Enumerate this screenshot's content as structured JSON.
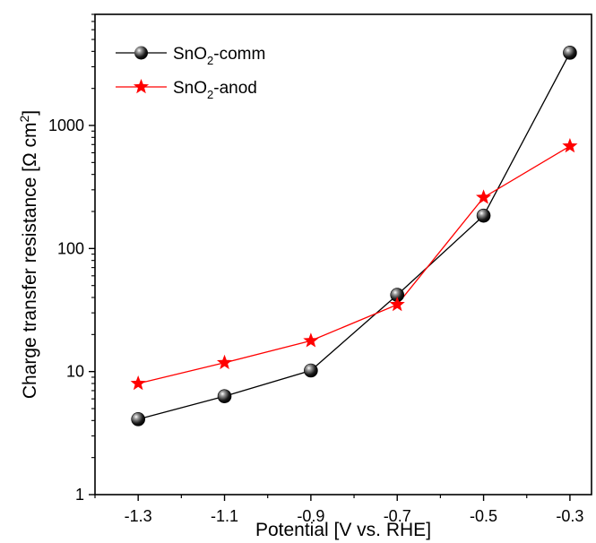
{
  "chart_data": {
    "type": "line",
    "xlabel": "Potential [V vs. RHE]",
    "ylabel": {
      "main": "Charge transfer resistance [Ω cm",
      "sup": "2",
      "close": "]"
    },
    "x": [
      -1.3,
      -1.1,
      -0.9,
      -0.7,
      -0.5,
      -0.3
    ],
    "x_tick_labels": [
      "-1.3",
      "-1.1",
      "-0.9",
      "-0.7",
      "-0.5",
      "-0.3"
    ],
    "xlim": [
      -1.4,
      -0.25
    ],
    "y_scale": "log",
    "ylim": [
      1,
      8000
    ],
    "y_tick_labels": [
      "1",
      "10",
      "100",
      "1000"
    ],
    "legend_position": "top-left",
    "series": [
      {
        "name": {
          "base": "SnO",
          "sub": "2",
          "suffix": "-comm"
        },
        "marker": "sphere",
        "color": "#000000",
        "values": [
          4.1,
          6.3,
          10.2,
          42,
          185,
          3900
        ]
      },
      {
        "name": {
          "base": "SnO",
          "sub": "2",
          "suffix": "-anod"
        },
        "marker": "star",
        "color": "#ff0000",
        "values": [
          8.0,
          11.8,
          17.8,
          35,
          260,
          680
        ]
      }
    ]
  }
}
